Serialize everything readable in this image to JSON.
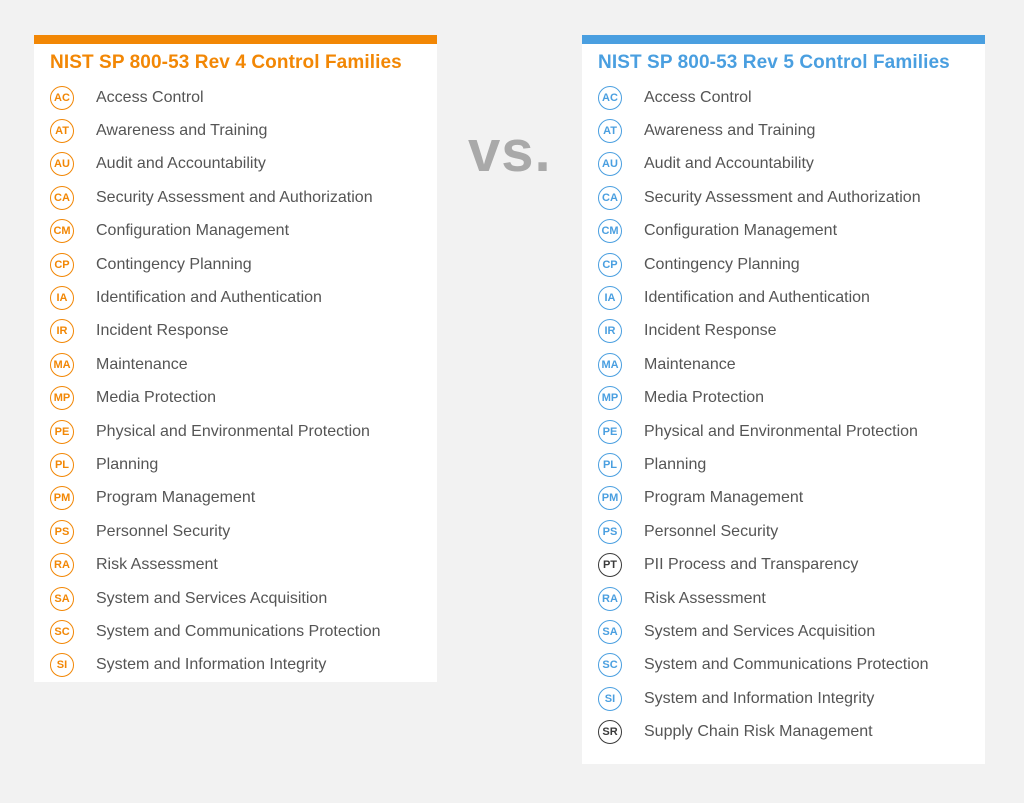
{
  "colors": {
    "rev4_accent": "#f28705",
    "rev5_accent": "#4a9fe0",
    "new_family": "#3a3a3a",
    "vs_text": "#a9a9a9"
  },
  "vs_text": "vs.",
  "rev4": {
    "title": "NIST SP 800-53 Rev 4 Control Families",
    "families": [
      {
        "code": "AC",
        "name": "Access Control"
      },
      {
        "code": "AT",
        "name": "Awareness and Training"
      },
      {
        "code": "AU",
        "name": "Audit and Accountability"
      },
      {
        "code": "CA",
        "name": "Security Assessment and Authorization"
      },
      {
        "code": "CM",
        "name": "Configuration Management"
      },
      {
        "code": "CP",
        "name": "Contingency Planning"
      },
      {
        "code": "IA",
        "name": "Identification and Authentication"
      },
      {
        "code": "IR",
        "name": "Incident Response"
      },
      {
        "code": "MA",
        "name": "Maintenance"
      },
      {
        "code": "MP",
        "name": "Media Protection"
      },
      {
        "code": "PE",
        "name": "Physical and Environmental Protection"
      },
      {
        "code": "PL",
        "name": "Planning"
      },
      {
        "code": "PM",
        "name": "Program Management"
      },
      {
        "code": "PS",
        "name": "Personnel Security"
      },
      {
        "code": "RA",
        "name": "Risk Assessment"
      },
      {
        "code": "SA",
        "name": "System and Services Acquisition"
      },
      {
        "code": "SC",
        "name": "System and Communications Protection"
      },
      {
        "code": "SI",
        "name": "System and Information Integrity"
      }
    ]
  },
  "rev5": {
    "title": "NIST SP 800-53 Rev 5 Control Families",
    "families": [
      {
        "code": "AC",
        "name": "Access Control"
      },
      {
        "code": "AT",
        "name": "Awareness and Training"
      },
      {
        "code": "AU",
        "name": "Audit and Accountability"
      },
      {
        "code": "CA",
        "name": "Security Assessment and Authorization"
      },
      {
        "code": "CM",
        "name": "Configuration Management"
      },
      {
        "code": "CP",
        "name": "Contingency Planning"
      },
      {
        "code": "IA",
        "name": "Identification and Authentication"
      },
      {
        "code": "IR",
        "name": "Incident Response"
      },
      {
        "code": "MA",
        "name": "Maintenance"
      },
      {
        "code": "MP",
        "name": "Media Protection"
      },
      {
        "code": "PE",
        "name": "Physical and Environmental Protection"
      },
      {
        "code": "PL",
        "name": "Planning"
      },
      {
        "code": "PM",
        "name": "Program Management"
      },
      {
        "code": "PS",
        "name": "Personnel Security"
      },
      {
        "code": "PT",
        "name": "PII Process and Transparency",
        "is_new": true
      },
      {
        "code": "RA",
        "name": "Risk Assessment"
      },
      {
        "code": "SA",
        "name": "System and Services Acquisition"
      },
      {
        "code": "SC",
        "name": "System and Communications Protection"
      },
      {
        "code": "SI",
        "name": "System and Information Integrity"
      },
      {
        "code": "SR",
        "name": "Supply Chain Risk Management",
        "is_new": true
      }
    ]
  }
}
